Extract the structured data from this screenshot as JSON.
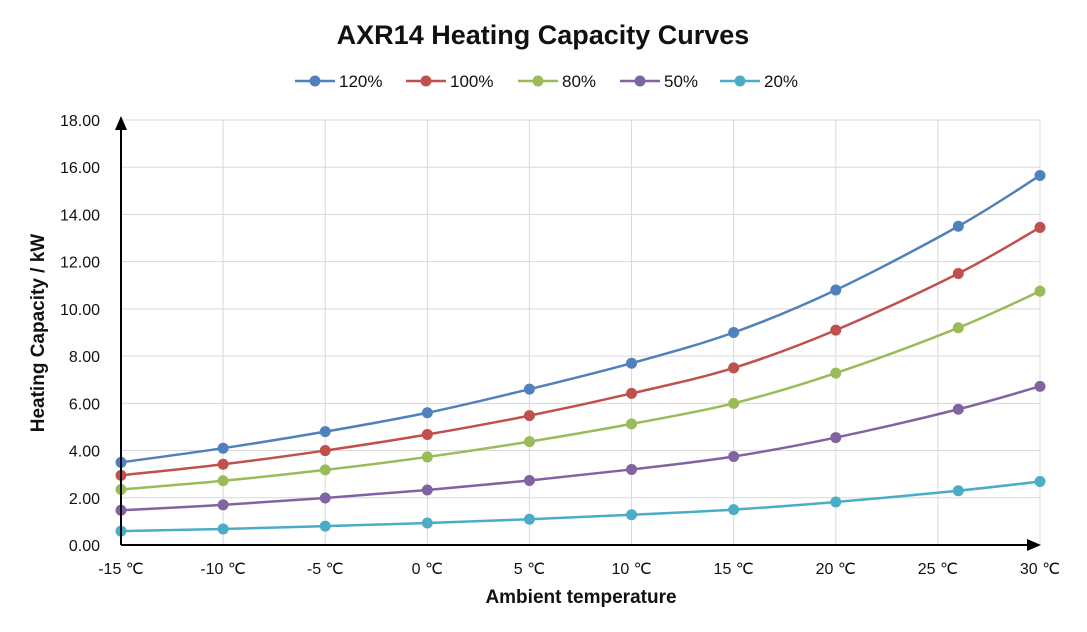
{
  "chart_data": {
    "type": "line",
    "title": "AXR14 Heating Capacity Curves",
    "xlabel": "Ambient temperature",
    "ylabel": "Heating Capacity / kW",
    "x": [
      -15,
      -10,
      -5,
      0,
      5,
      10,
      15,
      20,
      26,
      30
    ],
    "x_ticks": [
      -15,
      -10,
      -5,
      0,
      5,
      10,
      15,
      20,
      25,
      30
    ],
    "x_tick_labels": [
      "-15 ℃",
      "-10 ℃",
      "-5 ℃",
      "0 ℃",
      "5 ℃",
      "10 ℃",
      "15 ℃",
      "20 ℃",
      "25 ℃",
      "30 ℃"
    ],
    "xlim": [
      -15,
      30
    ],
    "ylim": [
      0,
      18
    ],
    "y_tick_labels": [
      "0.00",
      "2.00",
      "4.00",
      "6.00",
      "8.00",
      "10.00",
      "12.00",
      "14.00",
      "16.00",
      "18.00"
    ],
    "grid": true,
    "legend_position": "top",
    "series": [
      {
        "name": "120%",
        "color": "#4f81bd",
        "values": [
          3.5,
          4.1,
          4.8,
          5.6,
          6.6,
          7.7,
          9.0,
          10.8,
          13.5,
          15.65
        ]
      },
      {
        "name": "100%",
        "color": "#c0504d",
        "values": [
          2.95,
          3.42,
          4.0,
          4.68,
          5.48,
          6.42,
          7.5,
          9.1,
          11.5,
          13.45
        ]
      },
      {
        "name": "80%",
        "color": "#9bbb59",
        "values": [
          2.35,
          2.72,
          3.18,
          3.73,
          4.38,
          5.13,
          6.0,
          7.28,
          9.2,
          10.75
        ]
      },
      {
        "name": "50%",
        "color": "#8064a2",
        "values": [
          1.47,
          1.7,
          1.99,
          2.33,
          2.73,
          3.2,
          3.75,
          4.55,
          5.75,
          6.72
        ]
      },
      {
        "name": "20%",
        "color": "#4bacc6",
        "values": [
          0.59,
          0.68,
          0.8,
          0.93,
          1.09,
          1.28,
          1.5,
          1.82,
          2.3,
          2.69
        ]
      }
    ]
  }
}
